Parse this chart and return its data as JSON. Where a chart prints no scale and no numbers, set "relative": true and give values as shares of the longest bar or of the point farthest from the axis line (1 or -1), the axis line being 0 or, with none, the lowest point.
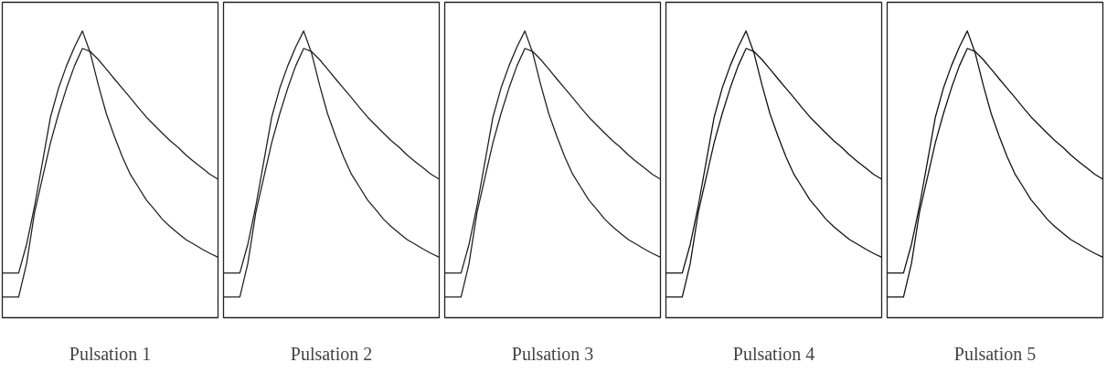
{
  "chart_data": [
    {
      "type": "line",
      "relative": true,
      "xlabel": "Pulsation 1",
      "categories": [
        null,
        null,
        null,
        null,
        null,
        null,
        null,
        null,
        null,
        null,
        null,
        null,
        null,
        null,
        null,
        null,
        null,
        null,
        null,
        null,
        null,
        null,
        null,
        null,
        null,
        null,
        null,
        null
      ],
      "series": [
        {
          "color": "#222222",
          "values": [
            0.156,
            0.156,
            0.156,
            0.256,
            0.389,
            0.544,
            0.7,
            0.8,
            0.878,
            0.944,
            1.0,
            0.922,
            0.811,
            0.711,
            0.633,
            0.561,
            0.5,
            0.456,
            0.411,
            0.378,
            0.344,
            0.317,
            0.294,
            0.272,
            0.256,
            0.239,
            0.224,
            0.211
          ]
        },
        {
          "color": "#222222",
          "values": [
            0.072,
            0.072,
            0.072,
            0.189,
            0.367,
            0.489,
            0.611,
            0.711,
            0.8,
            0.878,
            0.939,
            0.928,
            0.9,
            0.867,
            0.833,
            0.8,
            0.767,
            0.733,
            0.7,
            0.672,
            0.644,
            0.617,
            0.594,
            0.567,
            0.544,
            0.522,
            0.5,
            0.483
          ]
        }
      ]
    },
    {
      "type": "line",
      "relative": true,
      "xlabel": "Pulsation 2",
      "categories": [
        null,
        null,
        null,
        null,
        null,
        null,
        null,
        null,
        null,
        null,
        null,
        null,
        null,
        null,
        null,
        null,
        null,
        null,
        null,
        null,
        null,
        null,
        null,
        null,
        null,
        null,
        null,
        null
      ],
      "series": [
        {
          "color": "#222222",
          "values": [
            0.156,
            0.156,
            0.156,
            0.256,
            0.389,
            0.544,
            0.7,
            0.8,
            0.878,
            0.944,
            1.0,
            0.922,
            0.811,
            0.711,
            0.633,
            0.561,
            0.5,
            0.456,
            0.411,
            0.378,
            0.344,
            0.317,
            0.294,
            0.272,
            0.256,
            0.239,
            0.224,
            0.211
          ]
        },
        {
          "color": "#222222",
          "values": [
            0.072,
            0.072,
            0.072,
            0.189,
            0.367,
            0.489,
            0.611,
            0.711,
            0.8,
            0.878,
            0.939,
            0.928,
            0.9,
            0.867,
            0.833,
            0.8,
            0.767,
            0.733,
            0.7,
            0.672,
            0.644,
            0.617,
            0.594,
            0.567,
            0.544,
            0.522,
            0.5,
            0.483
          ]
        }
      ]
    },
    {
      "type": "line",
      "relative": true,
      "xlabel": "Pulsation 3",
      "categories": [
        null,
        null,
        null,
        null,
        null,
        null,
        null,
        null,
        null,
        null,
        null,
        null,
        null,
        null,
        null,
        null,
        null,
        null,
        null,
        null,
        null,
        null,
        null,
        null,
        null,
        null,
        null,
        null
      ],
      "series": [
        {
          "color": "#222222",
          "values": [
            0.156,
            0.156,
            0.156,
            0.256,
            0.389,
            0.544,
            0.7,
            0.8,
            0.878,
            0.944,
            1.0,
            0.922,
            0.811,
            0.711,
            0.633,
            0.561,
            0.5,
            0.456,
            0.411,
            0.378,
            0.344,
            0.317,
            0.294,
            0.272,
            0.256,
            0.239,
            0.224,
            0.211
          ]
        },
        {
          "color": "#222222",
          "values": [
            0.072,
            0.072,
            0.072,
            0.189,
            0.367,
            0.489,
            0.611,
            0.711,
            0.8,
            0.878,
            0.939,
            0.928,
            0.9,
            0.867,
            0.833,
            0.8,
            0.767,
            0.733,
            0.7,
            0.672,
            0.644,
            0.617,
            0.594,
            0.567,
            0.544,
            0.522,
            0.5,
            0.483
          ]
        }
      ]
    },
    {
      "type": "line",
      "relative": true,
      "xlabel": "Pulsation 4",
      "categories": [
        null,
        null,
        null,
        null,
        null,
        null,
        null,
        null,
        null,
        null,
        null,
        null,
        null,
        null,
        null,
        null,
        null,
        null,
        null,
        null,
        null,
        null,
        null,
        null,
        null,
        null,
        null,
        null
      ],
      "series": [
        {
          "color": "#111111",
          "values": [
            0.156,
            0.156,
            0.156,
            0.256,
            0.389,
            0.544,
            0.7,
            0.8,
            0.878,
            0.944,
            1.0,
            0.922,
            0.811,
            0.711,
            0.633,
            0.561,
            0.5,
            0.456,
            0.411,
            0.378,
            0.344,
            0.317,
            0.294,
            0.272,
            0.256,
            0.239,
            0.224,
            0.211
          ]
        },
        {
          "color": "#111111",
          "values": [
            0.072,
            0.072,
            0.072,
            0.189,
            0.367,
            0.489,
            0.611,
            0.711,
            0.8,
            0.878,
            0.939,
            0.928,
            0.9,
            0.867,
            0.833,
            0.8,
            0.767,
            0.733,
            0.7,
            0.672,
            0.644,
            0.617,
            0.594,
            0.567,
            0.544,
            0.522,
            0.5,
            0.483
          ]
        }
      ]
    },
    {
      "type": "line",
      "relative": true,
      "xlabel": "Pulsation 5",
      "categories": [
        null,
        null,
        null,
        null,
        null,
        null,
        null,
        null,
        null,
        null,
        null,
        null,
        null,
        null,
        null,
        null,
        null,
        null,
        null,
        null,
        null,
        null,
        null,
        null,
        null,
        null,
        null,
        null
      ],
      "series": [
        {
          "color": "#111111",
          "values": [
            0.156,
            0.156,
            0.156,
            0.256,
            0.389,
            0.544,
            0.7,
            0.8,
            0.878,
            0.944,
            1.0,
            0.922,
            0.811,
            0.711,
            0.633,
            0.561,
            0.5,
            0.456,
            0.411,
            0.378,
            0.344,
            0.317,
            0.294,
            0.272,
            0.256,
            0.239,
            0.224,
            0.211
          ]
        },
        {
          "color": "#111111",
          "values": [
            0.072,
            0.072,
            0.072,
            0.189,
            0.367,
            0.489,
            0.611,
            0.711,
            0.8,
            0.878,
            0.939,
            0.928,
            0.9,
            0.867,
            0.833,
            0.8,
            0.767,
            0.733,
            0.7,
            0.672,
            0.644,
            0.617,
            0.594,
            0.567,
            0.544,
            0.522,
            0.5,
            0.483
          ]
        }
      ]
    }
  ]
}
